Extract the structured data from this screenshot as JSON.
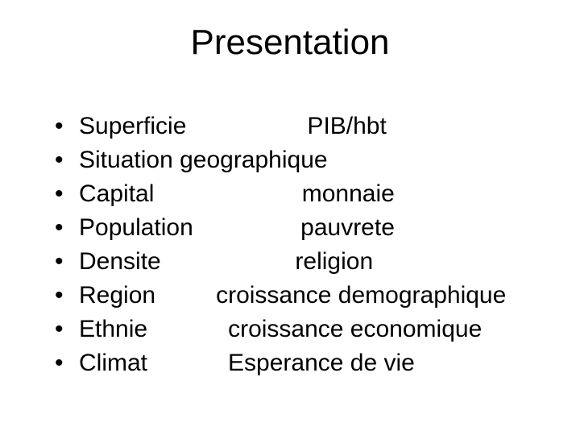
{
  "title": "Presentation",
  "items": [
    "Superficie                  PIB/hbt",
    "Situation geographique",
    "Capital                      monnaie",
    "Population                pauvrete",
    "Densite                    religion",
    "Region         croissance demographique",
    "Ethnie            croissance economique",
    "Climat            Esperance de vie"
  ],
  "colors": {
    "background": "#ffffff",
    "text": "#000000"
  },
  "typography": {
    "title_fontsize": 44,
    "body_fontsize": 30,
    "font_family": "Arial"
  }
}
